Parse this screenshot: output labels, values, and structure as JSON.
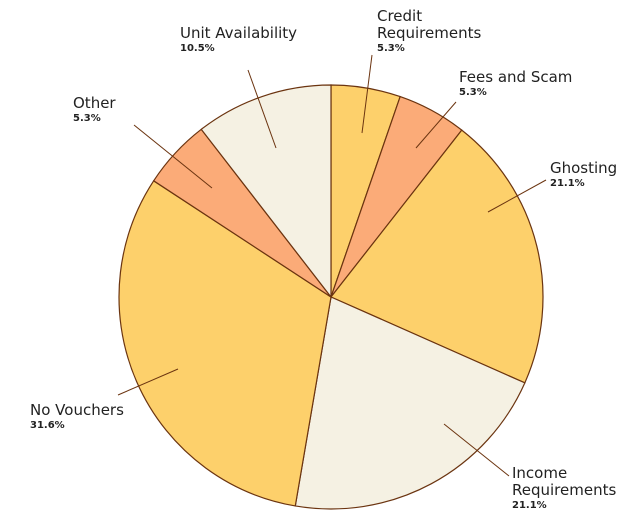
{
  "chart_data": {
    "type": "pie",
    "categories": [
      "Credit Requirements",
      "Fees and Scam",
      "Ghosting",
      "Income Requirements",
      "No Vouchers",
      "Other",
      "Unit Availability"
    ],
    "values": [
      5.3,
      5.3,
      21.1,
      21.1,
      31.6,
      5.3,
      10.5
    ],
    "value_labels": [
      "5.3%",
      "5.3%",
      "21.1%",
      "21.1%",
      "31.6%",
      "5.3%",
      "10.5%"
    ],
    "colors": [
      "#fdd06b",
      "#fbab78",
      "#fdd06b",
      "#f5f1e3",
      "#fdd06b",
      "#fbab78",
      "#f5f1e3"
    ]
  }
}
